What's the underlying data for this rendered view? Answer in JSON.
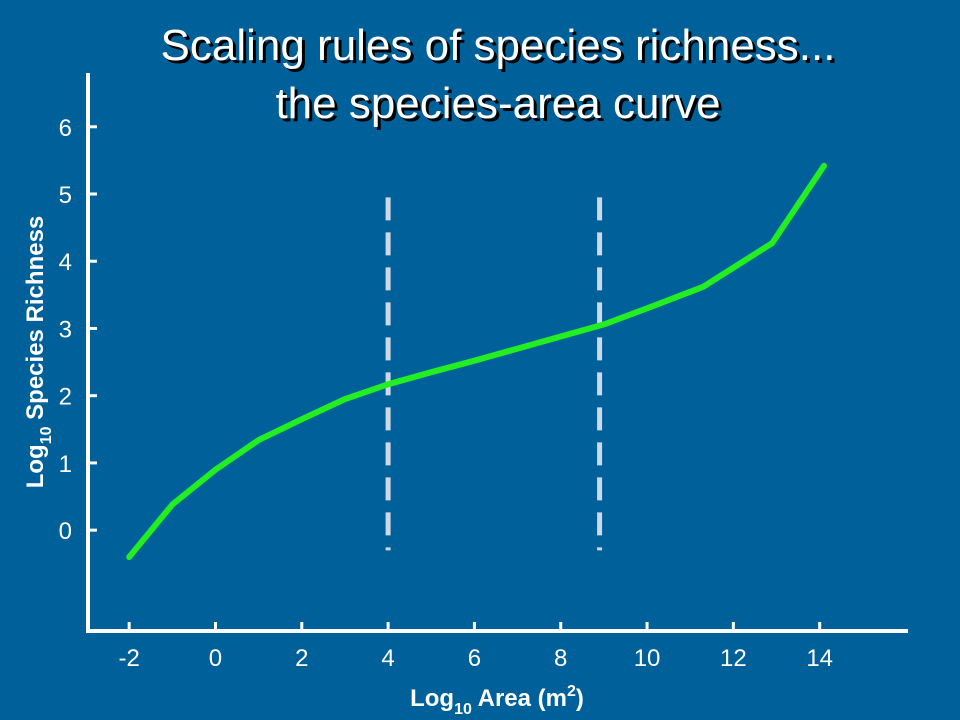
{
  "title_line1": "Scaling rules of species richness...",
  "title_line2": "the species-area curve",
  "chart_data": {
    "type": "line",
    "xlabel": {
      "main": "Log",
      "sub": "10",
      "rest": " Area (m",
      "sup": "2",
      "end": ")"
    },
    "ylabel": {
      "main": "Log",
      "sub": "10",
      "rest": " Species Richness"
    },
    "xlim": [
      -3,
      16
    ],
    "ylim": [
      -1.5,
      6.8
    ],
    "x_ticks": [
      -2,
      0,
      2,
      4,
      6,
      8,
      10,
      12,
      14
    ],
    "y_ticks": [
      0,
      1,
      2,
      3,
      4,
      5,
      6
    ],
    "grid": false,
    "series": [
      {
        "color": "#22ee22",
        "x": [
          -2,
          -1,
          0,
          1,
          2,
          3,
          4,
          5,
          6,
          7,
          8,
          9,
          10,
          11.3,
          12.9,
          14.1
        ],
        "y": [
          -0.4,
          0.38,
          0.9,
          1.34,
          1.65,
          1.95,
          2.17,
          2.35,
          2.52,
          2.7,
          2.88,
          3.06,
          3.3,
          3.62,
          4.27,
          5.42
        ]
      }
    ],
    "vlines": [
      {
        "x": 4.0,
        "y0": -0.3,
        "y1": 4.95,
        "style": "dashed",
        "color": "#cfd8e6"
      },
      {
        "x": 8.9,
        "y0": -0.3,
        "y1": 4.95,
        "style": "dashed",
        "color": "#cfd8e6"
      }
    ],
    "colors": {
      "background": "#00609a",
      "axis": "#ffffff",
      "text": "#ffffff",
      "title_shadow": "#000000"
    }
  }
}
